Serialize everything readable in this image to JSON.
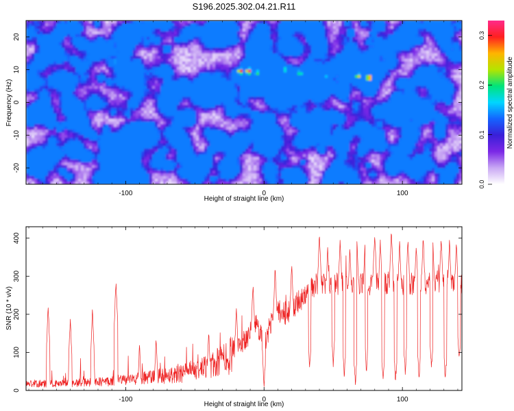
{
  "title": "S196.2025.302.04.21.R11",
  "colors": {
    "line": "#ee2222",
    "axis": "#000000",
    "colormap": [
      "#ffffff",
      "#c9a8f4",
      "#7b28e6",
      "#3a1fd8",
      "#1464ff",
      "#00d6ff",
      "#00e47a",
      "#b4e400",
      "#ffb400",
      "#ff2020",
      "#ff2a8a"
    ]
  },
  "chart_data": [
    {
      "type": "heatmap",
      "xlabel": "Height of straight line (km)",
      "ylabel": "Frequency (Hz)",
      "xlim": [
        -172,
        143
      ],
      "ylim": [
        -25,
        25
      ],
      "xticks": [
        -100,
        0,
        100
      ],
      "yticks": [
        -20,
        -10,
        0,
        10,
        20
      ],
      "colorbar": {
        "label": "Normalized spectral amplitude",
        "range": [
          0,
          0.33
        ],
        "ticks": [
          "0.0",
          "0.1",
          "0.2",
          "0.3"
        ],
        "tick_values": [
          0,
          0.1,
          0.2,
          0.3
        ]
      },
      "hotspots": [
        {
          "x": -17,
          "y": 9.5,
          "value": 0.31
        },
        {
          "x": -11,
          "y": 9.5,
          "value": 0.33
        },
        {
          "x": -5,
          "y": 9,
          "value": 0.22
        },
        {
          "x": 15,
          "y": 10,
          "value": 0.2
        },
        {
          "x": 26,
          "y": 9,
          "value": 0.22
        },
        {
          "x": 45,
          "y": 8,
          "value": 0.16
        },
        {
          "x": 68,
          "y": 8,
          "value": 0.26
        },
        {
          "x": 76,
          "y": 7.5,
          "value": 0.32
        },
        {
          "x": 90,
          "y": 8.5,
          "value": 0.14
        },
        {
          "x": 120,
          "y": 8,
          "value": 0.12
        },
        {
          "x": 134,
          "y": 7,
          "value": 0.12
        },
        {
          "x": -108,
          "y": 12.5,
          "value": 0.17
        },
        {
          "x": -55,
          "y": -3,
          "value": 0.12
        },
        {
          "x": -150,
          "y": -5,
          "value": 0.1
        }
      ]
    },
    {
      "type": "line",
      "xlabel": "Height of straight line (km)",
      "ylabel": "SNR (10 * v/v)",
      "xlim": [
        -172,
        143
      ],
      "ylim": [
        0,
        430
      ],
      "xticks": [
        -100,
        0,
        100
      ],
      "yticks": [
        0,
        100,
        200,
        300,
        400
      ],
      "baseline": [
        {
          "x": -172,
          "y": 18
        },
        {
          "x": -150,
          "y": 18
        },
        {
          "x": -120,
          "y": 22
        },
        {
          "x": -100,
          "y": 28
        },
        {
          "x": -80,
          "y": 35
        },
        {
          "x": -60,
          "y": 45
        },
        {
          "x": -40,
          "y": 60
        },
        {
          "x": -25,
          "y": 90
        },
        {
          "x": -15,
          "y": 130
        },
        {
          "x": -5,
          "y": 175
        },
        {
          "x": 0,
          "y": 120
        },
        {
          "x": 8,
          "y": 210
        },
        {
          "x": 18,
          "y": 200
        },
        {
          "x": 25,
          "y": 235
        },
        {
          "x": 30,
          "y": 250
        },
        {
          "x": 35,
          "y": 270
        },
        {
          "x": 40,
          "y": 280
        },
        {
          "x": 143,
          "y": 280
        }
      ],
      "spikes": [
        {
          "x": -156,
          "y": 228
        },
        {
          "x": -140,
          "y": 198
        },
        {
          "x": -124,
          "y": 217
        },
        {
          "x": -107,
          "y": 295
        },
        {
          "x": -90,
          "y": 130
        },
        {
          "x": -78,
          "y": 145
        },
        {
          "x": -40,
          "y": 160
        },
        {
          "x": -20,
          "y": 225
        },
        {
          "x": -8,
          "y": 285
        },
        {
          "x": 8,
          "y": 330
        },
        {
          "x": 20,
          "y": 340
        },
        {
          "x": 40,
          "y": 415
        },
        {
          "x": 46,
          "y": 385
        },
        {
          "x": 55,
          "y": 405
        },
        {
          "x": 62,
          "y": 380
        },
        {
          "x": 67,
          "y": 408
        },
        {
          "x": 73,
          "y": 395
        },
        {
          "x": 80,
          "y": 420
        },
        {
          "x": 84,
          "y": 400
        },
        {
          "x": 92,
          "y": 425
        },
        {
          "x": 98,
          "y": 395
        },
        {
          "x": 104,
          "y": 405
        },
        {
          "x": 110,
          "y": 390
        },
        {
          "x": 115,
          "y": 410
        },
        {
          "x": 122,
          "y": 398
        },
        {
          "x": 128,
          "y": 408
        },
        {
          "x": 134,
          "y": 400
        },
        {
          "x": 139,
          "y": 395
        }
      ],
      "dropouts": [
        {
          "x": 0,
          "y": 5
        },
        {
          "x": 33,
          "y": 55
        },
        {
          "x": 50,
          "y": 60
        },
        {
          "x": 58,
          "y": 30
        },
        {
          "x": 66,
          "y": 10
        },
        {
          "x": 74,
          "y": 45
        },
        {
          "x": 86,
          "y": 20
        },
        {
          "x": 95,
          "y": 15
        },
        {
          "x": 102,
          "y": 40
        },
        {
          "x": 112,
          "y": 25
        },
        {
          "x": 121,
          "y": 50
        },
        {
          "x": 131,
          "y": 20
        },
        {
          "x": 141,
          "y": 70
        }
      ]
    }
  ]
}
